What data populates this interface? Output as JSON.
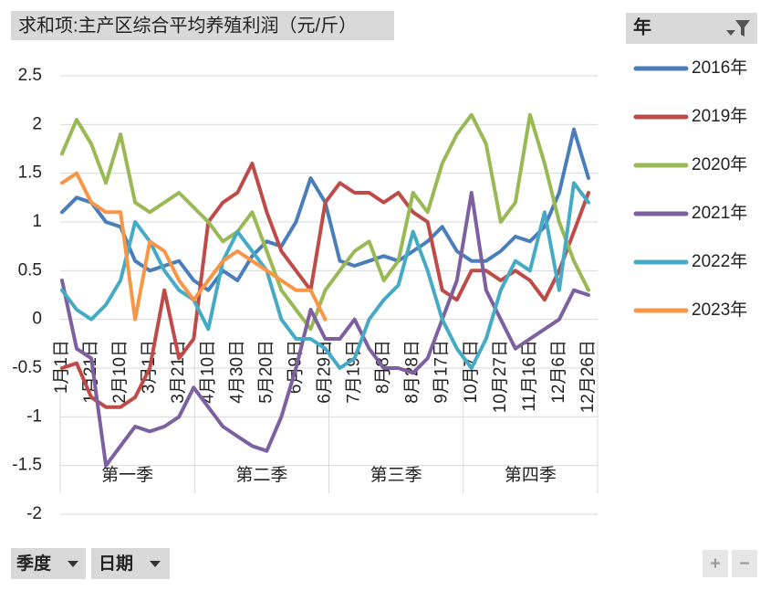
{
  "ui": {
    "title_button": "求和项:主产区综合平均养殖利润（元/斤）",
    "legend_header": "年",
    "filter_buttons": [
      "季度",
      "日期"
    ],
    "zoom_buttons": [
      "+",
      "−"
    ]
  },
  "chart_data": {
    "type": "line",
    "categories": [
      "1月1日",
      null,
      "1月21日",
      null,
      "2月10日",
      null,
      "3月1日",
      null,
      "3月21日",
      null,
      "4月10日",
      null,
      "4月30日",
      null,
      "5月20日",
      null,
      "6月9日",
      null,
      "6月29日",
      null,
      "7月19日",
      null,
      "8月8日",
      null,
      "8月28日",
      null,
      "9月17日",
      null,
      "10月7日",
      null,
      "10月27日",
      null,
      "11月16日",
      null,
      "12月6日",
      null,
      "12月26日"
    ],
    "quarters": [
      "第一季",
      "第二季",
      "第三季",
      "第四季"
    ],
    "ylim": [
      -2,
      2.5
    ],
    "yticks": [
      -2,
      -1.5,
      -1,
      -0.5,
      0,
      0.5,
      1,
      1.5,
      2,
      2.5
    ],
    "grid": true,
    "series": [
      {
        "name": "2016年",
        "color": "#4a7ebb",
        "values": [
          1.1,
          1.25,
          1.2,
          1.0,
          0.95,
          0.6,
          0.5,
          0.55,
          0.6,
          0.4,
          0.3,
          0.5,
          0.4,
          0.65,
          0.8,
          0.75,
          1.0,
          1.45,
          1.2,
          0.6,
          0.55,
          0.6,
          0.65,
          0.6,
          0.7,
          0.8,
          0.95,
          0.7,
          0.6,
          0.6,
          0.7,
          0.85,
          0.8,
          0.95,
          1.3,
          1.95,
          1.45
        ]
      },
      {
        "name": "2019年",
        "color": "#be4b48",
        "values": [
          -0.5,
          -0.45,
          -0.8,
          -0.9,
          -0.9,
          -0.8,
          -0.5,
          0.3,
          -0.4,
          -0.2,
          1.0,
          1.2,
          1.3,
          1.6,
          1.1,
          0.7,
          0.5,
          0.3,
          1.2,
          1.4,
          1.3,
          1.3,
          1.2,
          1.3,
          1.1,
          1.0,
          0.3,
          0.2,
          0.5,
          0.5,
          0.4,
          0.5,
          0.4,
          0.2,
          0.5,
          0.9,
          1.3
        ]
      },
      {
        "name": "2020年",
        "color": "#98b954",
        "values": [
          1.7,
          2.05,
          1.8,
          1.4,
          1.9,
          1.2,
          1.1,
          1.2,
          1.3,
          1.15,
          1.0,
          0.8,
          0.9,
          1.1,
          0.7,
          0.3,
          0.1,
          -0.1,
          0.3,
          0.5,
          0.7,
          0.8,
          0.4,
          0.6,
          1.3,
          1.1,
          1.6,
          1.9,
          2.1,
          1.8,
          1.0,
          1.2,
          2.1,
          1.6,
          1.0,
          0.6,
          0.3
        ]
      },
      {
        "name": "2021年",
        "color": "#7d60a0",
        "values": [
          0.4,
          -0.3,
          -0.4,
          -1.5,
          -1.3,
          -1.1,
          -1.15,
          -1.1,
          -1.0,
          -0.7,
          -0.9,
          -1.1,
          -1.2,
          -1.3,
          -1.35,
          -1.0,
          -0.5,
          0.1,
          -0.2,
          -0.2,
          0.0,
          -0.3,
          -0.5,
          -0.5,
          -0.55,
          -0.4,
          0.0,
          0.4,
          1.3,
          0.3,
          0.0,
          -0.3,
          -0.2,
          -0.1,
          0.0,
          0.3,
          0.25
        ]
      },
      {
        "name": "2022年",
        "color": "#46aac5",
        "values": [
          0.3,
          0.1,
          0.0,
          0.15,
          0.4,
          1.0,
          0.8,
          0.5,
          0.3,
          0.2,
          -0.1,
          0.6,
          0.9,
          0.7,
          0.5,
          0.0,
          -0.2,
          -0.2,
          -0.3,
          -0.5,
          -0.4,
          0.0,
          0.2,
          0.35,
          0.9,
          0.5,
          0.0,
          -0.3,
          -0.5,
          -0.2,
          0.3,
          0.6,
          0.5,
          1.1,
          0.3,
          1.4,
          1.2
        ]
      },
      {
        "name": "2023年",
        "color": "#f79646",
        "values": [
          1.4,
          1.5,
          1.2,
          1.1,
          1.1,
          0.0,
          0.8,
          0.7,
          0.4,
          0.2,
          0.4,
          0.6,
          0.7,
          0.6,
          0.5,
          0.4,
          0.3,
          0.3,
          0.0,
          null,
          null,
          null,
          null,
          null,
          null,
          null,
          null,
          null,
          null,
          null,
          null,
          null,
          null,
          null,
          null,
          null,
          null
        ]
      }
    ]
  }
}
